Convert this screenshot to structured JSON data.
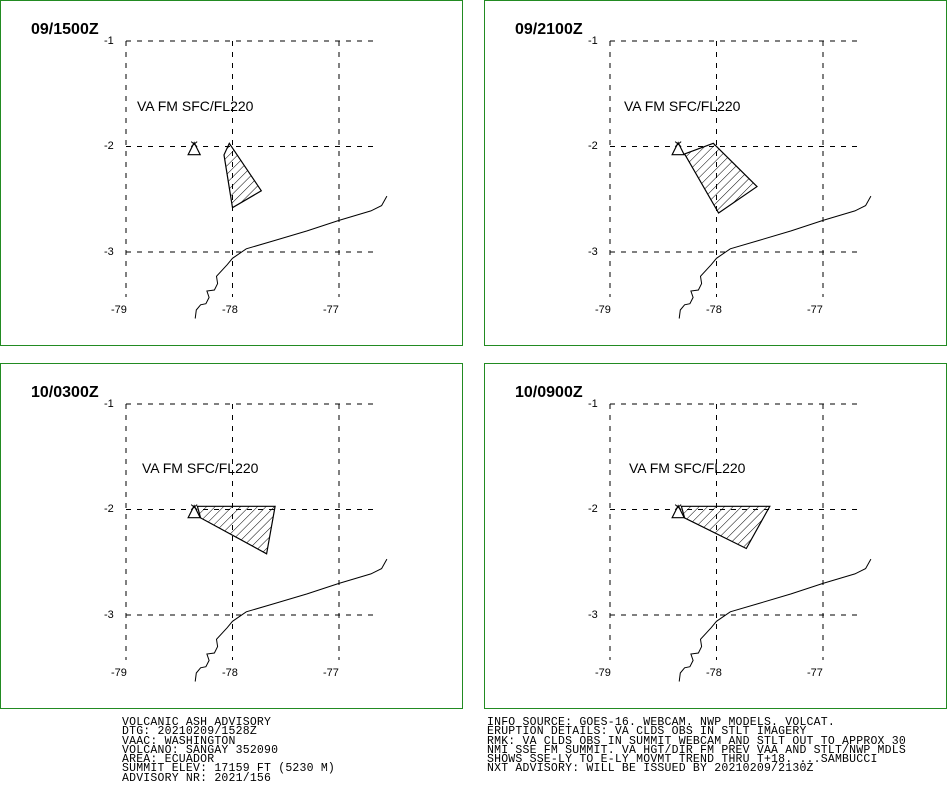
{
  "panels": [
    {
      "dtg": "09/1500Z",
      "label": "VA FM SFC/FL220",
      "lat_ticks": [
        "-1",
        "-2",
        "-3"
      ],
      "lon_ticks": [
        "-79",
        "-78",
        "-77"
      ],
      "polygon": [
        [
          -78.03,
          -1.97
        ],
        [
          -77.73,
          -2.42
        ],
        [
          -78.0,
          -2.58
        ],
        [
          -78.08,
          -2.08
        ]
      ]
    },
    {
      "dtg": "09/2100Z",
      "label": "VA FM SFC/FL220",
      "lat_ticks": [
        "-1",
        "-2",
        "-3"
      ],
      "lon_ticks": [
        "-79",
        "-78",
        "-77"
      ],
      "polygon": [
        [
          -78.03,
          -1.97
        ],
        [
          -77.62,
          -2.38
        ],
        [
          -77.98,
          -2.63
        ],
        [
          -78.3,
          -2.07
        ]
      ]
    },
    {
      "dtg": "10/0300Z",
      "label": "VA FM SFC/FL220",
      "lat_ticks": [
        "-1",
        "-2",
        "-3"
      ],
      "lon_ticks": [
        "-79",
        "-78",
        "-77"
      ],
      "polygon": [
        [
          -78.33,
          -1.97
        ],
        [
          -77.6,
          -1.97
        ],
        [
          -77.68,
          -2.42
        ],
        [
          -78.3,
          -2.08
        ]
      ]
    },
    {
      "dtg": "10/0900Z",
      "label": "VA FM SFC/FL220",
      "lat_ticks": [
        "-1",
        "-2",
        "-3"
      ],
      "lon_ticks": [
        "-79",
        "-78",
        "-77"
      ],
      "polygon": [
        [
          -78.33,
          -1.97
        ],
        [
          -77.5,
          -1.97
        ],
        [
          -77.72,
          -2.37
        ],
        [
          -78.3,
          -2.08
        ]
      ]
    }
  ],
  "advisory_left": [
    "VOLCANIC ASH ADVISORY",
    "DTG: 20210209/1528Z",
    "VAAC: WASHINGTON",
    "VOLCANO: SANGAY 352090",
    "AREA: ECUADOR",
    "SUMMIT ELEV: 17159 FT (5230 M)",
    "ADVISORY NR: 2021/156"
  ],
  "advisory_right": [
    "INFO SOURCE: GOES-16. WEBCAM. NWP MODELS. VOLCAT.",
    "ERUPTION DETAILS: VA CLDS OBS IN STLT IMAGERY",
    "RMK: VA CLDS OBS IN SUMMIT WEBCAM AND STLT OUT TO APPROX 30",
    "NMI SSE FM SUMMIT. VA HGT/DIR FM PREV VAA AND STLT/NWP MDLS",
    "SHOWS SSE-LY TO E-LY MOVMT TREND THRU T+18. ...SAMBUCCI",
    "NXT ADVISORY: WILL BE ISSUED BY 20210209/2130Z"
  ],
  "colors": {
    "frame": "#228B22",
    "ink": "#000000"
  }
}
